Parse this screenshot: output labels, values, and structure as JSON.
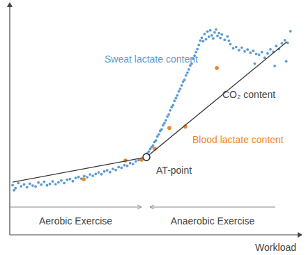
{
  "chart_data": {
    "type": "scatter",
    "xlabel": "Workload",
    "xlim": [
      0,
      100
    ],
    "ylim": [
      0,
      100
    ],
    "xticks": [],
    "yticks": [],
    "tick_labels": false,
    "grid": false,
    "series": [
      {
        "name": "Sweat lactate content",
        "color": "#5b9bd5",
        "marker": "circle",
        "x": [
          1,
          1.5,
          2,
          3,
          4,
          5,
          6,
          7,
          8,
          9,
          10,
          11,
          12,
          13,
          14,
          15,
          16,
          17,
          18,
          19,
          20,
          21,
          22,
          23,
          24,
          25,
          26,
          27,
          28,
          29,
          30,
          31,
          32,
          33,
          34,
          35,
          36,
          37,
          38,
          39,
          40,
          41,
          42,
          43,
          44,
          45,
          46,
          47,
          48,
          48.5,
          49,
          49.5,
          50,
          50.5,
          51,
          51.5,
          52,
          52.5,
          53,
          53.5,
          54,
          54.5,
          55,
          55.5,
          56,
          56.5,
          57,
          57.5,
          58,
          58.5,
          59,
          59.5,
          60,
          60.5,
          61,
          61.5,
          62,
          62.5,
          63,
          63.5,
          64,
          64.5,
          65,
          65.5,
          66,
          66.5,
          67,
          67.5,
          68,
          68.5,
          69,
          69.5,
          70,
          70.5,
          71,
          71.5,
          72,
          72.5,
          73,
          73.5,
          74,
          75,
          76,
          76.5,
          77,
          78,
          79,
          80,
          81,
          82,
          83,
          84,
          85,
          86,
          87,
          88,
          89,
          90,
          91,
          92,
          93,
          94,
          95,
          96,
          97,
          98,
          85.5,
          92.5,
          96.5
        ],
        "values": [
          21.5,
          19.3,
          20.2,
          22.4,
          21.0,
          21.8,
          20.6,
          22.1,
          21.3,
          20.9,
          22.6,
          21.7,
          22.9,
          21.4,
          22.0,
          23.1,
          21.9,
          22.7,
          23.5,
          22.4,
          23.8,
          24.1,
          23.2,
          24.6,
          25.0,
          24.3,
          25.4,
          24.9,
          26.1,
          25.5,
          26.3,
          27.0,
          26.2,
          27.4,
          27.9,
          27.1,
          28.5,
          28.0,
          29.3,
          29.0,
          30.1,
          29.8,
          31.0,
          30.6,
          31.8,
          32.3,
          32.9,
          33.4,
          35.2,
          36.0,
          37.1,
          37.9,
          38.6,
          40.1,
          40.8,
          42.5,
          43.4,
          44.9,
          45.6,
          47.4,
          48.3,
          49.5,
          51.1,
          52.0,
          53.8,
          55.2,
          56.0,
          57.9,
          59.1,
          60.3,
          62.0,
          63.1,
          64.6,
          66.2,
          67.0,
          68.9,
          70.1,
          71.5,
          73.2,
          74.0,
          76.1,
          77.4,
          79.0,
          80.3,
          82.1,
          84.0,
          85.2,
          83.7,
          86.8,
          84.5,
          87.9,
          85.6,
          88.4,
          86.2,
          84.9,
          87.5,
          88.8,
          86.0,
          87.2,
          85.1,
          86.6,
          84.3,
          85.8,
          83.9,
          82.4,
          80.6,
          81.2,
          79.8,
          80.9,
          79.3,
          80.1,
          78.7,
          79.5,
          78.2,
          77.8,
          79.0,
          76.5,
          78.4,
          80.2,
          79.1,
          81.6,
          80.3,
          82.8,
          84.1,
          83.0,
          88.0,
          74.0,
          73.0,
          75.0
        ]
      },
      {
        "name": "Blood lactate content",
        "color": "#f0862a",
        "marker": "circle",
        "x": [
          25.8,
          40.4,
          46.0,
          50.6,
          55.7,
          61.3,
          72.3
        ],
        "values": [
          24.0,
          32.1,
          32.4,
          37.2,
          46.2,
          46.8,
          72.1
        ]
      },
      {
        "name": "CO₂ content",
        "type": "line",
        "color": "#3a3a3a",
        "line_style": "solid",
        "x": [
          1,
          47.7,
          96.8
        ],
        "values": [
          22.8,
          33.6,
          83.5
        ]
      }
    ],
    "annotations": [
      {
        "text": "AT-point",
        "x": 47.7,
        "y": 33.6
      }
    ],
    "regions": [
      {
        "label": "Aerobic Exercise",
        "x_range": [
          0,
          46
        ]
      },
      {
        "label": "Anaerobic Exercise",
        "x_range": [
          48.9,
          92.7
        ]
      }
    ]
  }
}
